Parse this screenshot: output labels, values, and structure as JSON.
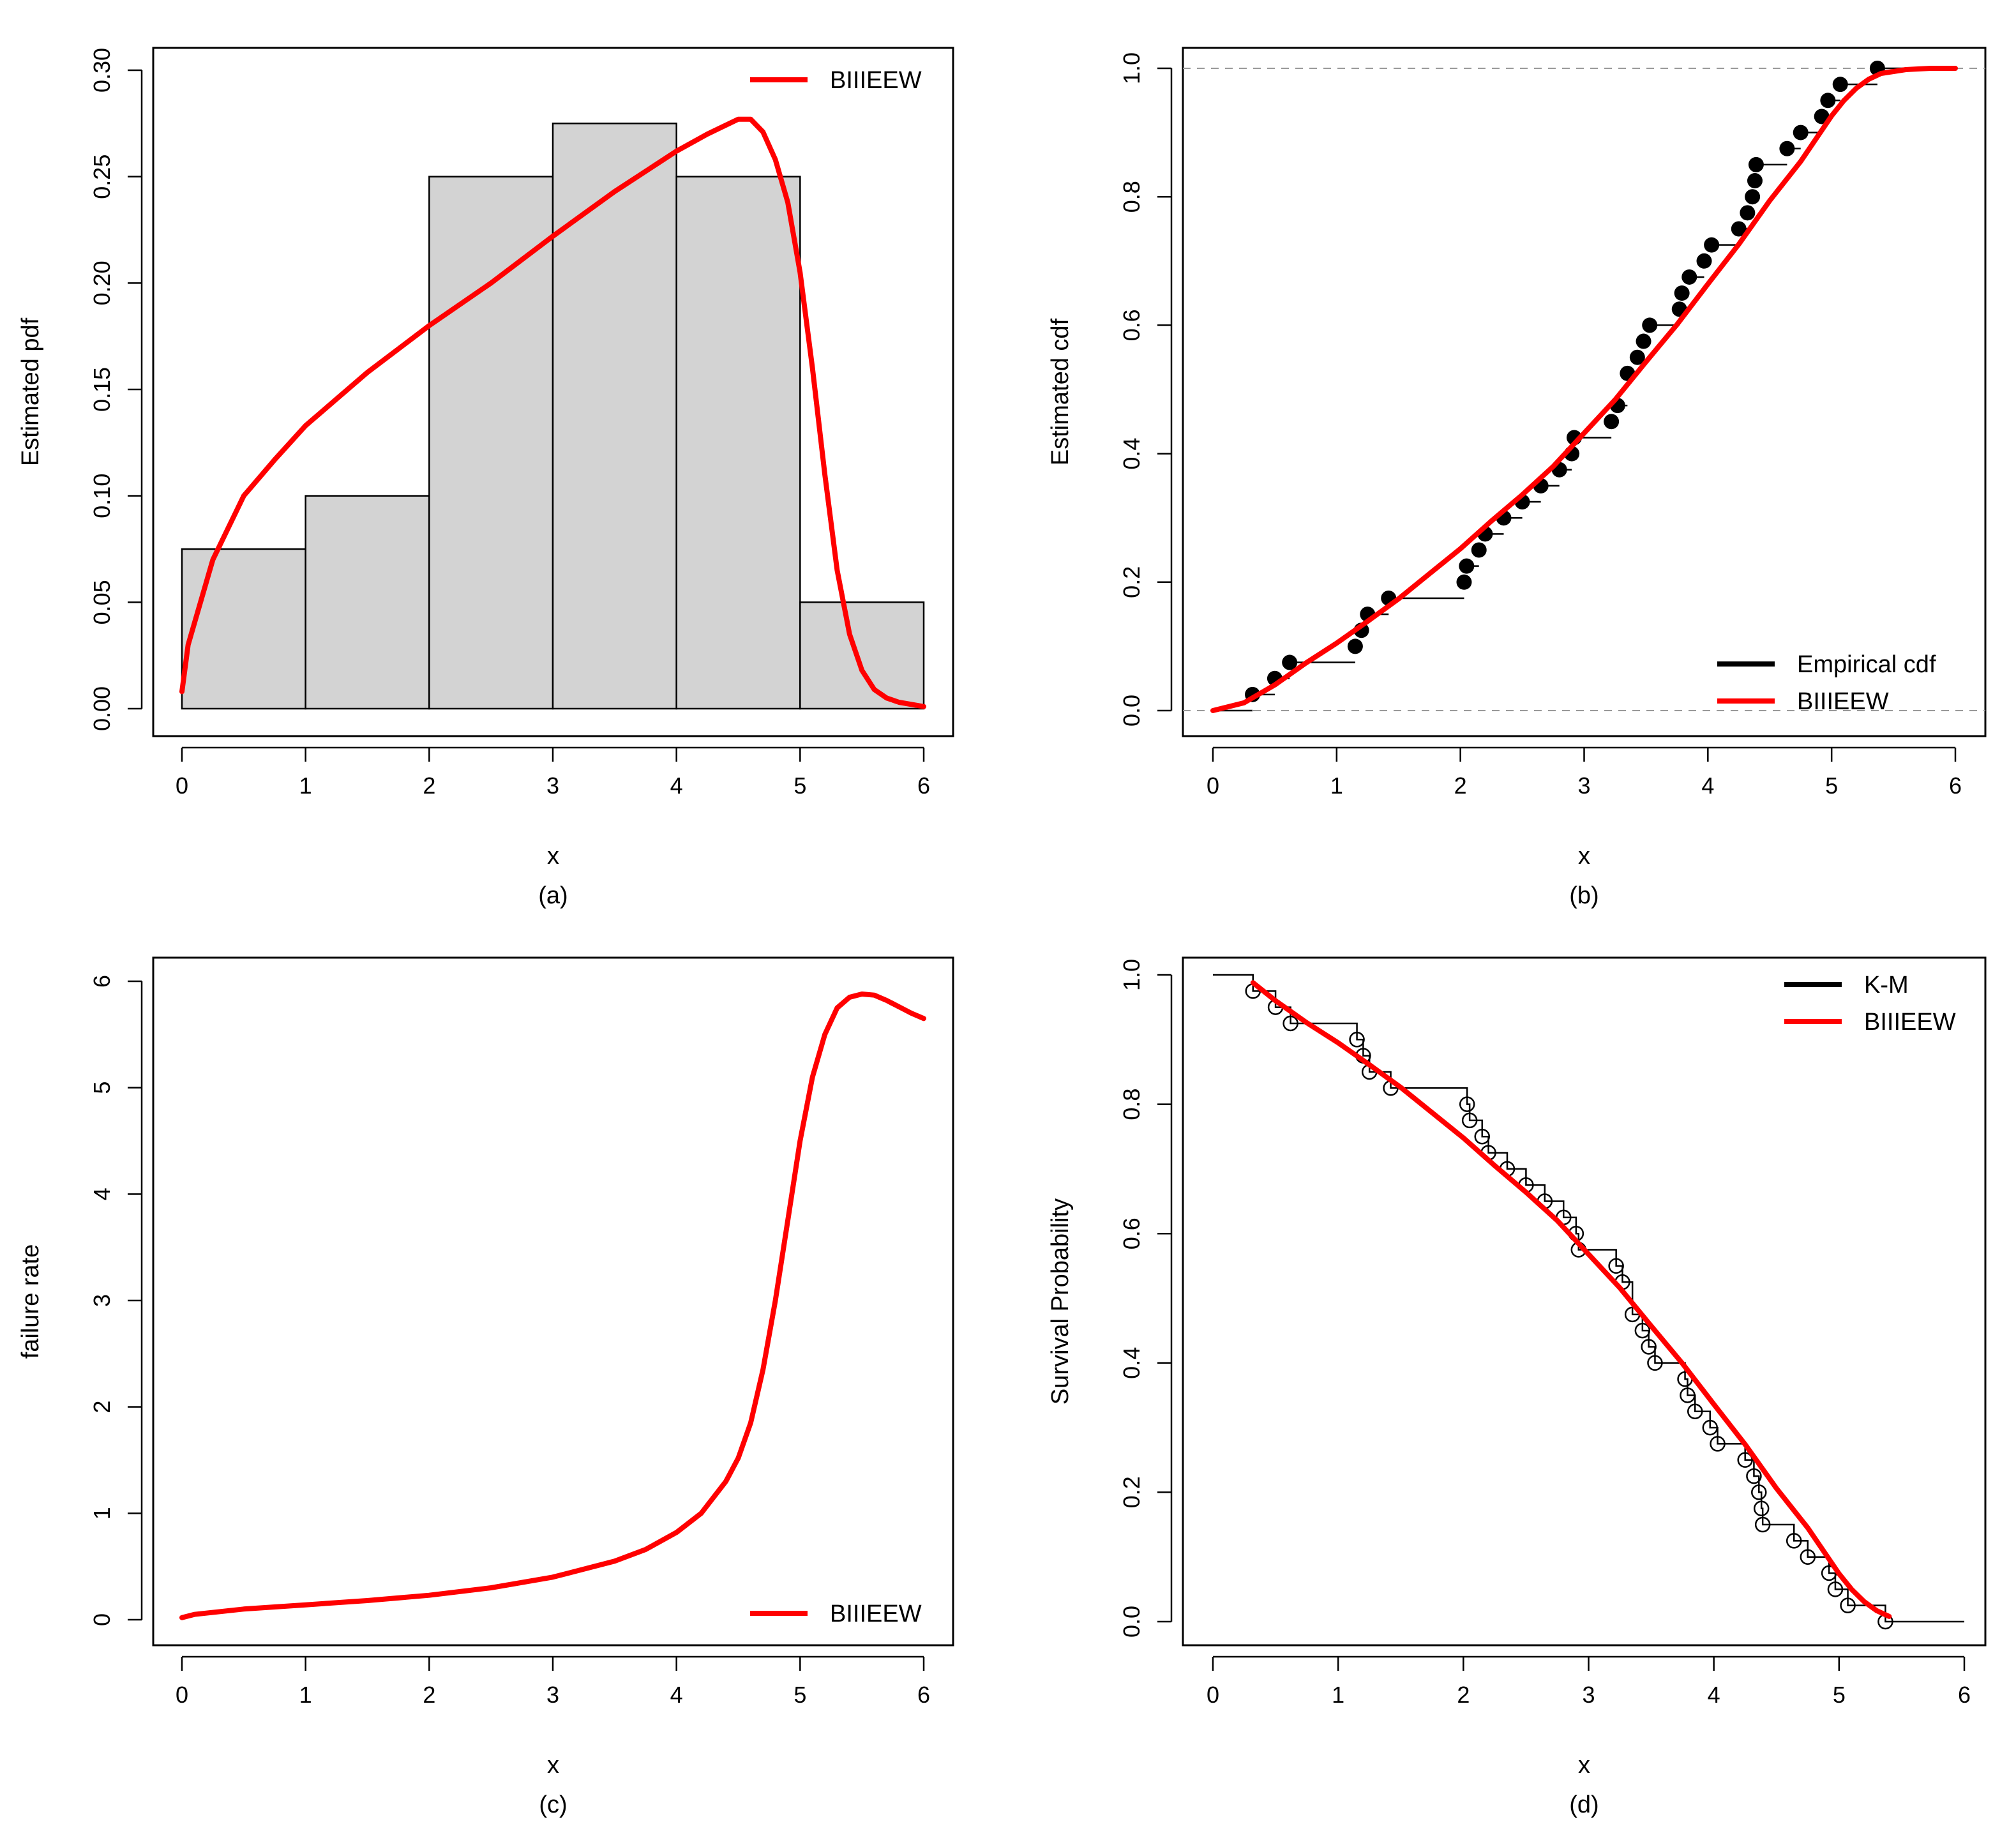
{
  "chart_data": [
    {
      "id": "a",
      "type": "histogram",
      "caption": "(a)",
      "xlabel": "x",
      "ylabel": "Estimated pdf",
      "xlim": [
        0,
        6
      ],
      "ylim": [
        0,
        0.3
      ],
      "xticks": [
        0,
        1,
        2,
        3,
        4,
        5,
        6
      ],
      "yticks": [
        "0.00",
        "0.05",
        "0.10",
        "0.15",
        "0.20",
        "0.25",
        "0.30"
      ],
      "bin_edges": [
        0,
        1,
        2,
        3,
        4,
        5,
        6
      ],
      "densities": [
        0.075,
        0.1,
        0.25,
        0.275,
        0.25,
        0.05
      ],
      "bar_color": "#d3d3d3",
      "legend": [
        {
          "label": "BIIIEEW",
          "color": "#ff0000"
        }
      ],
      "legend_position": "top-right",
      "series": [
        {
          "name": "BIIIEEW",
          "color": "#ff0000",
          "x": [
            0,
            0.05,
            0.25,
            0.5,
            0.75,
            1,
            1.5,
            2,
            2.5,
            3,
            3.5,
            4,
            4.25,
            4.5,
            4.6,
            4.7,
            4.8,
            4.9,
            5,
            5.1,
            5.2,
            5.3,
            5.4,
            5.5,
            5.6,
            5.7,
            5.8,
            6
          ],
          "y": [
            0.008,
            0.03,
            0.07,
            0.1,
            0.117,
            0.133,
            0.158,
            0.18,
            0.2,
            0.222,
            0.243,
            0.262,
            0.27,
            0.277,
            0.277,
            0.271,
            0.258,
            0.238,
            0.205,
            0.16,
            0.11,
            0.065,
            0.035,
            0.018,
            0.009,
            0.005,
            0.003,
            0.001
          ]
        }
      ]
    },
    {
      "id": "b",
      "type": "ecdf",
      "caption": "(b)",
      "xlabel": "x",
      "ylabel": "Estimated cdf",
      "xlim": [
        0,
        6
      ],
      "ylim": [
        0,
        1
      ],
      "xticks": [
        0,
        1,
        2,
        3,
        4,
        5,
        6
      ],
      "yticks": [
        "0.0",
        "0.2",
        "0.4",
        "0.6",
        "0.8",
        "1.0"
      ],
      "hlines": [
        0,
        1
      ],
      "legend": [
        {
          "label": "Empirical cdf",
          "color": "#000000"
        },
        {
          "label": "BIIIEEW",
          "color": "#ff0000"
        }
      ],
      "legend_position": "bottom-right",
      "empirical": {
        "x": [
          0.32,
          0.5,
          0.62,
          1.15,
          1.2,
          1.25,
          1.42,
          2.03,
          2.05,
          2.15,
          2.2,
          2.35,
          2.5,
          2.65,
          2.8,
          2.9,
          2.92,
          3.22,
          3.27,
          3.35,
          3.43,
          3.48,
          3.53,
          3.77,
          3.79,
          3.85,
          3.97,
          4.03,
          4.25,
          4.32,
          4.36,
          4.38,
          4.39,
          4.64,
          4.75,
          4.92,
          4.97,
          5.07,
          5.37
        ],
        "y": [
          0.025,
          0.05,
          0.075,
          0.1,
          0.125,
          0.15,
          0.175,
          0.2,
          0.225,
          0.25,
          0.275,
          0.3,
          0.325,
          0.35,
          0.375,
          0.4,
          0.425,
          0.45,
          0.475,
          0.525,
          0.55,
          0.575,
          0.6,
          0.625,
          0.65,
          0.675,
          0.7,
          0.725,
          0.75,
          0.775,
          0.8,
          0.825,
          0.85,
          0.875,
          0.9,
          0.925,
          0.95,
          0.975,
          1.0
        ]
      },
      "series": [
        {
          "name": "BIIIEEW",
          "color": "#ff0000",
          "x": [
            0,
            0.25,
            0.5,
            0.75,
            1,
            1.25,
            1.5,
            1.75,
            2,
            2.25,
            2.5,
            2.75,
            3,
            3.25,
            3.5,
            3.75,
            4,
            4.25,
            4.5,
            4.75,
            5,
            5.1,
            5.2,
            5.3,
            5.4,
            5.6,
            5.8,
            6
          ],
          "y": [
            0,
            0.012,
            0.04,
            0.074,
            0.105,
            0.139,
            0.174,
            0.213,
            0.252,
            0.295,
            0.336,
            0.38,
            0.432,
            0.484,
            0.543,
            0.601,
            0.664,
            0.726,
            0.794,
            0.855,
            0.926,
            0.95,
            0.969,
            0.983,
            0.992,
            0.998,
            1.0,
            1.0
          ]
        }
      ]
    },
    {
      "id": "c",
      "type": "line",
      "caption": "(c)",
      "xlabel": "x",
      "ylabel": "failure rate",
      "xlim": [
        0,
        6
      ],
      "ylim": [
        0,
        6
      ],
      "xticks": [
        0,
        1,
        2,
        3,
        4,
        5,
        6
      ],
      "yticks": [
        "0",
        "1",
        "2",
        "3",
        "4",
        "5",
        "6"
      ],
      "legend": [
        {
          "label": "BIIIEEW",
          "color": "#ff0000"
        }
      ],
      "legend_position": "bottom-right",
      "series": [
        {
          "name": "BIIIEEW",
          "color": "#ff0000",
          "x": [
            0,
            0.1,
            0.5,
            1,
            1.5,
            2,
            2.5,
            3,
            3.5,
            3.75,
            4,
            4.2,
            4.4,
            4.5,
            4.6,
            4.7,
            4.8,
            4.9,
            5,
            5.1,
            5.2,
            5.3,
            5.4,
            5.5,
            5.6,
            5.7,
            5.8,
            5.9,
            6
          ],
          "y": [
            0.02,
            0.05,
            0.1,
            0.14,
            0.18,
            0.23,
            0.3,
            0.4,
            0.55,
            0.66,
            0.82,
            1.0,
            1.3,
            1.52,
            1.85,
            2.35,
            3.0,
            3.75,
            4.5,
            5.1,
            5.5,
            5.75,
            5.85,
            5.88,
            5.87,
            5.82,
            5.76,
            5.7,
            5.65
          ]
        }
      ]
    },
    {
      "id": "d",
      "type": "survival",
      "caption": "(d)",
      "xlabel": "x",
      "ylabel": "Survival Probability",
      "xlim": [
        0,
        6
      ],
      "ylim": [
        0,
        1
      ],
      "xticks": [
        0,
        1,
        2,
        3,
        4,
        5,
        6
      ],
      "yticks": [
        "0.0",
        "0.2",
        "0.4",
        "0.6",
        "0.8",
        "1.0"
      ],
      "legend": [
        {
          "label": "K-M",
          "color": "#000000"
        },
        {
          "label": "BIIIEEW",
          "color": "#ff0000"
        }
      ],
      "legend_position": "top-right",
      "km": {
        "x": [
          0.32,
          0.5,
          0.62,
          1.15,
          1.2,
          1.25,
          1.42,
          2.03,
          2.05,
          2.15,
          2.2,
          2.35,
          2.5,
          2.65,
          2.8,
          2.9,
          2.92,
          3.22,
          3.27,
          3.35,
          3.43,
          3.48,
          3.53,
          3.77,
          3.79,
          3.85,
          3.97,
          4.03,
          4.25,
          4.32,
          4.36,
          4.38,
          4.39,
          4.64,
          4.75,
          4.92,
          4.97,
          5.07,
          5.37
        ],
        "y": [
          0.975,
          0.95,
          0.925,
          0.9,
          0.875,
          0.85,
          0.825,
          0.8,
          0.775,
          0.75,
          0.725,
          0.7,
          0.675,
          0.65,
          0.625,
          0.6,
          0.575,
          0.55,
          0.525,
          0.475,
          0.45,
          0.425,
          0.4,
          0.375,
          0.35,
          0.325,
          0.3,
          0.275,
          0.25,
          0.225,
          0.2,
          0.175,
          0.15,
          0.125,
          0.1,
          0.075,
          0.05,
          0.025,
          0.0
        ]
      },
      "series": [
        {
          "name": "BIIIEEW",
          "color": "#ff0000",
          "x": [
            0.32,
            0.5,
            0.75,
            1,
            1.25,
            1.5,
            1.75,
            2,
            2.25,
            2.5,
            2.75,
            3,
            3.25,
            3.5,
            3.75,
            4,
            4.25,
            4.5,
            4.75,
            5,
            5.1,
            5.2,
            5.3,
            5.4
          ],
          "y": [
            0.988,
            0.96,
            0.926,
            0.895,
            0.861,
            0.826,
            0.787,
            0.748,
            0.705,
            0.664,
            0.62,
            0.568,
            0.516,
            0.457,
            0.399,
            0.336,
            0.274,
            0.206,
            0.145,
            0.074,
            0.05,
            0.031,
            0.017,
            0.008
          ]
        }
      ]
    }
  ]
}
